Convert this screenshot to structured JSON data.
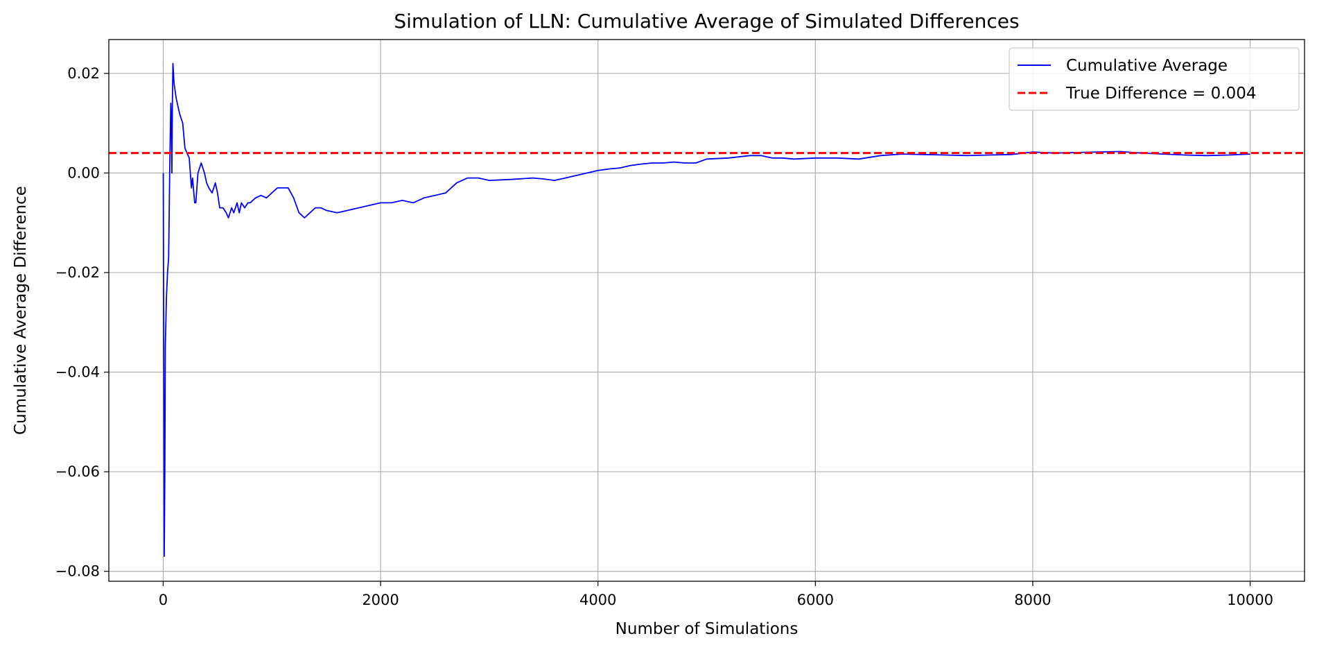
{
  "chart_data": {
    "type": "line",
    "title": "Simulation of LLN: Cumulative Average of Simulated Differences",
    "xlabel": "Number of Simulations",
    "ylabel": "Cumulative Average Difference",
    "xlim": [
      -500,
      10500
    ],
    "ylim": [
      -0.082,
      0.0268
    ],
    "x_ticks": [
      0,
      2000,
      4000,
      6000,
      8000,
      10000
    ],
    "x_tick_labels": [
      "0",
      "2000",
      "4000",
      "6000",
      "8000",
      "10000"
    ],
    "y_ticks": [
      -0.08,
      -0.06,
      -0.04,
      -0.02,
      0.0,
      0.02
    ],
    "y_tick_labels": [
      "−0.08",
      "−0.06",
      "−0.04",
      "−0.02",
      "0.00",
      "0.02"
    ],
    "grid": true,
    "legend_position": "top-right",
    "series": [
      {
        "name": "Cumulative Average",
        "color": "#0000ff",
        "style": "solid",
        "x": [
          1,
          10,
          15,
          20,
          30,
          40,
          50,
          60,
          70,
          75,
          80,
          85,
          90,
          95,
          100,
          120,
          150,
          180,
          200,
          210,
          220,
          240,
          260,
          270,
          280,
          290,
          300,
          320,
          350,
          380,
          400,
          420,
          450,
          480,
          500,
          520,
          550,
          580,
          600,
          630,
          650,
          680,
          700,
          720,
          750,
          780,
          800,
          850,
          900,
          950,
          1000,
          1050,
          1100,
          1150,
          1200,
          1250,
          1300,
          1350,
          1400,
          1450,
          1500,
          1600,
          1700,
          1800,
          1900,
          2000,
          2100,
          2200,
          2300,
          2400,
          2500,
          2600,
          2700,
          2800,
          2900,
          3000,
          3200,
          3400,
          3500,
          3600,
          3700,
          3800,
          3900,
          4000,
          4100,
          4200,
          4300,
          4400,
          4500,
          4600,
          4700,
          4800,
          4900,
          5000,
          5200,
          5400,
          5500,
          5600,
          5700,
          5800,
          6000,
          6200,
          6400,
          6600,
          6800,
          7000,
          7200,
          7400,
          7600,
          7800,
          8000,
          8200,
          8400,
          8600,
          8800,
          9000,
          9200,
          9400,
          9600,
          9800,
          10000
        ],
        "y": [
          0.0,
          -0.077,
          -0.06,
          -0.035,
          -0.025,
          -0.02,
          -0.017,
          0.0,
          0.014,
          0.011,
          0.0,
          0.014,
          0.022,
          0.02,
          0.018,
          0.015,
          0.012,
          0.01,
          0.005,
          0.0045,
          0.004,
          0.003,
          -0.003,
          -0.001,
          -0.0035,
          -0.006,
          -0.006,
          0.0,
          0.002,
          0.0,
          -0.002,
          -0.003,
          -0.004,
          -0.002,
          -0.004,
          -0.007,
          -0.007,
          -0.008,
          -0.009,
          -0.007,
          -0.008,
          -0.006,
          -0.008,
          -0.006,
          -0.007,
          -0.006,
          -0.006,
          -0.005,
          -0.0045,
          -0.005,
          -0.004,
          -0.003,
          -0.003,
          -0.003,
          -0.005,
          -0.008,
          -0.009,
          -0.008,
          -0.007,
          -0.007,
          -0.0075,
          -0.008,
          -0.0075,
          -0.007,
          -0.0065,
          -0.006,
          -0.006,
          -0.0055,
          -0.006,
          -0.005,
          -0.0045,
          -0.004,
          -0.002,
          -0.001,
          -0.001,
          -0.0015,
          -0.0013,
          -0.001,
          -0.0012,
          -0.0015,
          -0.001,
          -0.0005,
          0.0,
          0.0005,
          0.0008,
          0.001,
          0.0015,
          0.0018,
          0.002,
          0.002,
          0.0022,
          0.002,
          0.002,
          0.0028,
          0.003,
          0.0035,
          0.0035,
          0.003,
          0.003,
          0.0028,
          0.003,
          0.003,
          0.0028,
          0.0035,
          0.0038,
          0.0037,
          0.0036,
          0.0035,
          0.0036,
          0.0037,
          0.0042,
          0.004,
          0.0041,
          0.0042,
          0.0043,
          0.004,
          0.0038,
          0.0036,
          0.0035,
          0.0036,
          0.0038
        ]
      },
      {
        "name": "True Difference = 0.004",
        "color": "#ff0000",
        "style": "dashed",
        "y_const": 0.004
      }
    ]
  }
}
